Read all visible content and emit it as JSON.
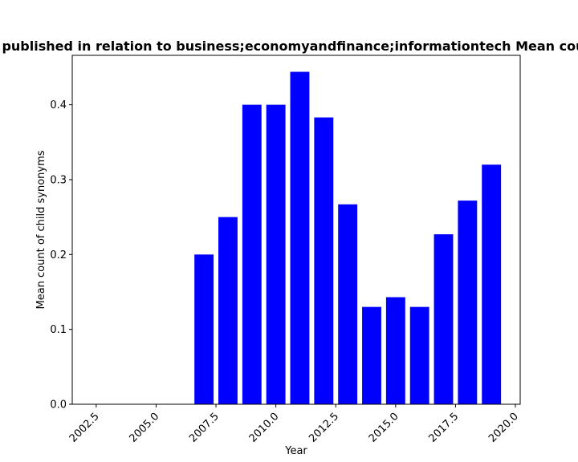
{
  "chart_data": {
    "type": "bar",
    "title": "Proportion of articles published in relation to business;economyandfinance;informationtech Mean count of child synonyms",
    "xlabel": "Year",
    "ylabel": "Mean count of child synonyms",
    "x": [
      2007,
      2008,
      2009,
      2010,
      2011,
      2012,
      2013,
      2014,
      2015,
      2016,
      2017,
      2018,
      2019
    ],
    "values": [
      0.2,
      0.25,
      0.4,
      0.4,
      0.444,
      0.383,
      0.267,
      0.13,
      0.143,
      0.13,
      0.227,
      0.272,
      0.32
    ],
    "xlim": [
      2001.5,
      2020.2
    ],
    "ylim": [
      0,
      0.466
    ],
    "xticks": [
      2002.5,
      2005.0,
      2007.5,
      2010.0,
      2012.5,
      2015.0,
      2017.5,
      2020.0
    ],
    "xtick_labels": [
      "2002.5",
      "2005.0",
      "2007.5",
      "2010.0",
      "2012.5",
      "2015.0",
      "2017.5",
      "2020.0"
    ],
    "yticks": [
      0.0,
      0.1,
      0.2,
      0.3,
      0.4
    ],
    "ytick_labels": [
      "0.0",
      "0.1",
      "0.2",
      "0.3",
      "0.4"
    ],
    "bar_color": "#0000ff",
    "grid": false,
    "legend": "none"
  }
}
